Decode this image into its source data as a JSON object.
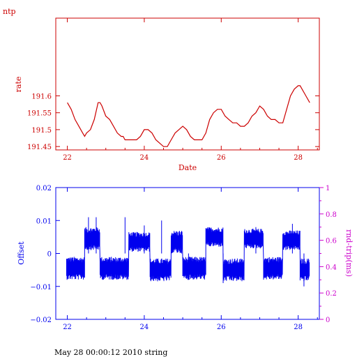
{
  "page_label": "ntp",
  "footer": "May 28 00:00:12 2010 string",
  "colors": {
    "rate": "#cc0000",
    "offset": "#0000ee",
    "rtt": "#cc00cc"
  },
  "chart_data": [
    {
      "type": "line",
      "xlabel": "Date",
      "ylabel": "rate",
      "xlim": [
        21.7,
        28.55
      ],
      "ylim": [
        191.44,
        191.83
      ],
      "xticks": [
        {
          "value": 22,
          "label": "22"
        },
        {
          "value": 24,
          "label": "24"
        },
        {
          "value": 26,
          "label": "26"
        },
        {
          "value": 28,
          "label": "28"
        }
      ],
      "yticks": [
        {
          "value": 191.45,
          "label": "191.45"
        },
        {
          "value": 191.5,
          "label": "191.5"
        },
        {
          "value": 191.55,
          "label": "191.55"
        },
        {
          "value": 191.6,
          "label": "191.6"
        }
      ],
      "series": [
        {
          "x": [
            22.0,
            22.1,
            22.2,
            22.3,
            22.4,
            22.45,
            22.5,
            22.6,
            22.7,
            22.8,
            22.85,
            22.9,
            23.0,
            23.1,
            23.2,
            23.3,
            23.4,
            23.45,
            23.5,
            23.6,
            23.7,
            23.8,
            23.9,
            24.0,
            24.1,
            24.2,
            24.3,
            24.4,
            24.5,
            24.6,
            24.7,
            24.8,
            24.9,
            25.0,
            25.1,
            25.2,
            25.3,
            25.4,
            25.5,
            25.6,
            25.7,
            25.8,
            25.9,
            26.0,
            26.1,
            26.2,
            26.3,
            26.4,
            26.5,
            26.6,
            26.7,
            26.8,
            26.9,
            27.0,
            27.1,
            27.2,
            27.3,
            27.4,
            27.5,
            27.6,
            27.7,
            27.8,
            27.9,
            28.0,
            28.05,
            28.1,
            28.2,
            28.3
          ],
          "y": [
            191.58,
            191.56,
            191.53,
            191.51,
            191.49,
            191.48,
            191.49,
            191.5,
            191.53,
            191.58,
            191.58,
            191.57,
            191.54,
            191.53,
            191.51,
            191.49,
            191.48,
            191.48,
            191.47,
            191.47,
            191.47,
            191.47,
            191.48,
            191.5,
            191.5,
            191.49,
            191.47,
            191.46,
            191.45,
            191.45,
            191.47,
            191.49,
            191.5,
            191.51,
            191.5,
            191.48,
            191.47,
            191.47,
            191.47,
            191.49,
            191.53,
            191.55,
            191.56,
            191.56,
            191.54,
            191.53,
            191.52,
            191.52,
            191.51,
            191.51,
            191.52,
            191.54,
            191.55,
            191.57,
            191.56,
            191.54,
            191.53,
            191.53,
            191.52,
            191.52,
            191.56,
            191.6,
            191.62,
            191.63,
            191.63,
            191.62,
            191.6,
            191.58
          ]
        }
      ]
    },
    {
      "type": "line",
      "xlim": [
        21.7,
        28.55
      ],
      "ylim": [
        -0.02,
        0.02
      ],
      "ylabel": "Offset",
      "y2label": "rnd-trip(ms)",
      "y2lim": [
        0,
        1
      ],
      "xticks": [
        {
          "value": 22,
          "label": "22"
        },
        {
          "value": 24,
          "label": "24"
        },
        {
          "value": 26,
          "label": "26"
        },
        {
          "value": 28,
          "label": "28"
        }
      ],
      "yticks": [
        {
          "value": -0.02,
          "label": "−0.02"
        },
        {
          "value": -0.01,
          "label": "−0.01"
        },
        {
          "value": 0,
          "label": "0"
        },
        {
          "value": 0.01,
          "label": "0.01"
        },
        {
          "value": 0.02,
          "label": "0.02"
        }
      ],
      "y2ticks": [
        {
          "value": 0,
          "label": "0"
        },
        {
          "value": 0.2,
          "label": "0.2"
        },
        {
          "value": 0.4,
          "label": "0.4"
        },
        {
          "value": 0.6,
          "label": "0.6"
        },
        {
          "value": 0.8,
          "label": "0.8"
        },
        {
          "value": 1,
          "label": "1"
        }
      ],
      "segments": [
        {
          "x0": 21.98,
          "x1": 22.45,
          "center": -0.0045,
          "spread": 0.0035
        },
        {
          "x0": 22.45,
          "x1": 22.85,
          "center": 0.0045,
          "spread": 0.0035
        },
        {
          "x0": 22.85,
          "x1": 23.6,
          "center": -0.0045,
          "spread": 0.0035
        },
        {
          "x0": 23.6,
          "x1": 24.15,
          "center": 0.0035,
          "spread": 0.003
        },
        {
          "x0": 24.15,
          "x1": 24.7,
          "center": -0.005,
          "spread": 0.0035
        },
        {
          "x0": 24.7,
          "x1": 25.0,
          "center": 0.0035,
          "spread": 0.0035
        },
        {
          "x0": 25.0,
          "x1": 25.6,
          "center": -0.0045,
          "spread": 0.0035
        },
        {
          "x0": 25.6,
          "x1": 26.05,
          "center": 0.005,
          "spread": 0.003
        },
        {
          "x0": 26.05,
          "x1": 26.6,
          "center": -0.005,
          "spread": 0.0035
        },
        {
          "x0": 26.6,
          "x1": 27.1,
          "center": 0.0045,
          "spread": 0.003
        },
        {
          "x0": 27.1,
          "x1": 27.6,
          "center": -0.0045,
          "spread": 0.0035
        },
        {
          "x0": 27.6,
          "x1": 28.05,
          "center": 0.004,
          "spread": 0.003
        },
        {
          "x0": 28.05,
          "x1": 28.3,
          "center": -0.005,
          "spread": 0.0035
        }
      ],
      "spikes": [
        {
          "x": 22.55,
          "y": 0.011
        },
        {
          "x": 22.75,
          "y": 0.011
        },
        {
          "x": 23.5,
          "y": 0.011
        },
        {
          "x": 24.0,
          "y": 0.0085
        },
        {
          "x": 24.45,
          "y": 0.01
        },
        {
          "x": 25.15,
          "y": -0.008
        },
        {
          "x": 26.05,
          "y": -0.009
        },
        {
          "x": 26.9,
          "y": 0.008
        },
        {
          "x": 27.85,
          "y": 0.009
        },
        {
          "x": 28.15,
          "y": -0.01
        }
      ]
    }
  ]
}
